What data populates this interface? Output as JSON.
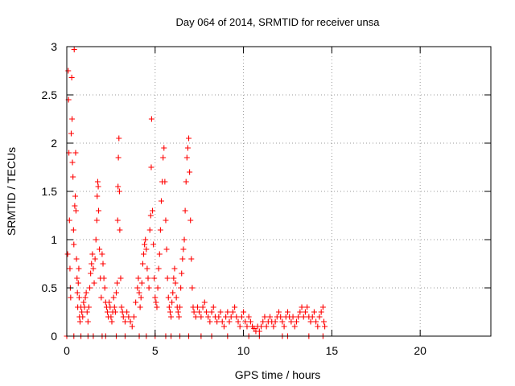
{
  "chart_data": {
    "type": "scatter",
    "title": "Day 064 of 2014, SRMTID for receiver unsa",
    "xlabel": "GPS time / hours",
    "ylabel": "SRMTID / TECUs",
    "xlim": [
      0,
      24
    ],
    "ylim": [
      0,
      3
    ],
    "xticks": [
      0,
      5,
      10,
      15,
      20
    ],
    "xtick_labels": [
      "0",
      "5",
      "10",
      "15",
      "20"
    ],
    "yticks": [
      0,
      0.5,
      1,
      1.5,
      2,
      2.5,
      3
    ],
    "ytick_labels": [
      "0",
      "0.5",
      "1",
      "1.5",
      "2",
      "2.5",
      "3"
    ],
    "grid": true,
    "marker": "+",
    "series_color": "#ff0000",
    "series": [
      {
        "name": "SRMTID",
        "points": [
          [
            0.05,
            0.85
          ],
          [
            0.08,
            2.75
          ],
          [
            0.1,
            2.45
          ],
          [
            0.12,
            1.9
          ],
          [
            0.15,
            1.2
          ],
          [
            0.18,
            0.7
          ],
          [
            0.2,
            0.5
          ],
          [
            0.22,
            0.4
          ],
          [
            0.25,
            2.1
          ],
          [
            0.28,
            2.68
          ],
          [
            0.3,
            2.25
          ],
          [
            0.32,
            1.8
          ],
          [
            0.35,
            1.65
          ],
          [
            0.38,
            1.1
          ],
          [
            0.4,
            0.95
          ],
          [
            0.42,
            2.97
          ],
          [
            0.45,
            1.35
          ],
          [
            0.48,
            1.45
          ],
          [
            0.5,
            1.9
          ],
          [
            0.52,
            1.3
          ],
          [
            0.55,
            0.8
          ],
          [
            0.58,
            0.6
          ],
          [
            0.6,
            0.45
          ],
          [
            0.62,
            0.3
          ],
          [
            0.65,
            0.55
          ],
          [
            0.68,
            0.7
          ],
          [
            0.7,
            0.4
          ],
          [
            0.72,
            0.2
          ],
          [
            0.75,
            0.15
          ],
          [
            0.8,
            0.3
          ],
          [
            0.85,
            0.25
          ],
          [
            0.9,
            0.2
          ],
          [
            0.95,
            0.35
          ],
          [
            1.0,
            0.3
          ],
          [
            1.05,
            0.4
          ],
          [
            1.1,
            0.45
          ],
          [
            1.15,
            0.25
          ],
          [
            1.2,
            0.15
          ],
          [
            1.25,
            0.3
          ],
          [
            1.3,
            0.5
          ],
          [
            1.35,
            0.65
          ],
          [
            1.4,
            0.75
          ],
          [
            1.45,
            0.85
          ],
          [
            1.5,
            0.7
          ],
          [
            1.55,
            0.55
          ],
          [
            1.6,
            0.8
          ],
          [
            1.65,
            1.0
          ],
          [
            1.7,
            1.2
          ],
          [
            1.72,
            1.45
          ],
          [
            1.75,
            1.6
          ],
          [
            1.78,
            1.55
          ],
          [
            1.8,
            1.3
          ],
          [
            1.85,
            0.9
          ],
          [
            1.9,
            0.6
          ],
          [
            1.95,
            0.4
          ],
          [
            2.0,
            0.85
          ],
          [
            2.05,
            0.75
          ],
          [
            2.1,
            0.6
          ],
          [
            2.15,
            0.5
          ],
          [
            2.2,
            0.35
          ],
          [
            2.25,
            0.3
          ],
          [
            2.3,
            0.25
          ],
          [
            2.35,
            0.2
          ],
          [
            2.4,
            0.35
          ],
          [
            2.45,
            0.3
          ],
          [
            2.5,
            0.2
          ],
          [
            2.55,
            0.15
          ],
          [
            2.6,
            0.25
          ],
          [
            2.65,
            0.4
          ],
          [
            2.7,
            0.3
          ],
          [
            2.75,
            0.25
          ],
          [
            2.8,
            0.45
          ],
          [
            2.85,
            0.55
          ],
          [
            2.88,
            1.2
          ],
          [
            2.9,
            1.55
          ],
          [
            2.92,
            1.85
          ],
          [
            2.95,
            2.05
          ],
          [
            2.98,
            1.5
          ],
          [
            3.0,
            1.1
          ],
          [
            3.05,
            0.6
          ],
          [
            3.1,
            0.3
          ],
          [
            3.15,
            0.25
          ],
          [
            3.2,
            0.2
          ],
          [
            3.3,
            0.15
          ],
          [
            3.4,
            0.25
          ],
          [
            3.5,
            0.2
          ],
          [
            3.6,
            0.15
          ],
          [
            3.7,
            0.1
          ],
          [
            3.8,
            0.2
          ],
          [
            3.9,
            0.35
          ],
          [
            4.0,
            0.5
          ],
          [
            4.05,
            0.6
          ],
          [
            4.1,
            0.45
          ],
          [
            4.15,
            0.3
          ],
          [
            4.2,
            0.4
          ],
          [
            4.25,
            0.55
          ],
          [
            4.3,
            0.75
          ],
          [
            4.35,
            0.85
          ],
          [
            4.4,
            0.95
          ],
          [
            4.45,
            1.0
          ],
          [
            4.5,
            0.9
          ],
          [
            4.55,
            0.7
          ],
          [
            4.6,
            0.6
          ],
          [
            4.65,
            0.5
          ],
          [
            4.7,
            1.1
          ],
          [
            4.75,
            1.25
          ],
          [
            4.78,
            1.75
          ],
          [
            4.8,
            2.25
          ],
          [
            4.85,
            1.3
          ],
          [
            4.9,
            0.95
          ],
          [
            4.95,
            0.6
          ],
          [
            5.0,
            0.4
          ],
          [
            5.05,
            0.35
          ],
          [
            5.1,
            0.3
          ],
          [
            5.15,
            0.5
          ],
          [
            5.2,
            0.7
          ],
          [
            5.25,
            0.85
          ],
          [
            5.3,
            1.1
          ],
          [
            5.35,
            1.4
          ],
          [
            5.4,
            1.6
          ],
          [
            5.45,
            1.85
          ],
          [
            5.5,
            1.95
          ],
          [
            5.55,
            1.6
          ],
          [
            5.6,
            1.2
          ],
          [
            5.65,
            0.9
          ],
          [
            5.7,
            0.6
          ],
          [
            5.75,
            0.4
          ],
          [
            5.8,
            0.3
          ],
          [
            5.85,
            0.25
          ],
          [
            5.9,
            0.2
          ],
          [
            5.95,
            0.35
          ],
          [
            6.0,
            0.45
          ],
          [
            6.05,
            0.6
          ],
          [
            6.1,
            0.7
          ],
          [
            6.15,
            0.55
          ],
          [
            6.2,
            0.4
          ],
          [
            6.25,
            0.3
          ],
          [
            6.3,
            0.25
          ],
          [
            6.35,
            0.2
          ],
          [
            6.4,
            0.3
          ],
          [
            6.45,
            0.5
          ],
          [
            6.5,
            0.65
          ],
          [
            6.55,
            0.8
          ],
          [
            6.6,
            0.9
          ],
          [
            6.65,
            1.0
          ],
          [
            6.7,
            1.3
          ],
          [
            6.75,
            1.6
          ],
          [
            6.8,
            1.85
          ],
          [
            6.85,
            1.95
          ],
          [
            6.9,
            2.05
          ],
          [
            6.95,
            1.7
          ],
          [
            7.0,
            1.2
          ],
          [
            7.05,
            0.8
          ],
          [
            7.1,
            0.5
          ],
          [
            7.15,
            0.3
          ],
          [
            7.2,
            0.25
          ],
          [
            7.3,
            0.2
          ],
          [
            7.4,
            0.3
          ],
          [
            7.5,
            0.25
          ],
          [
            7.6,
            0.2
          ],
          [
            7.7,
            0.3
          ],
          [
            7.8,
            0.35
          ],
          [
            7.9,
            0.25
          ],
          [
            8.0,
            0.2
          ],
          [
            8.1,
            0.15
          ],
          [
            8.2,
            0.25
          ],
          [
            8.3,
            0.3
          ],
          [
            8.4,
            0.2
          ],
          [
            8.5,
            0.15
          ],
          [
            8.6,
            0.2
          ],
          [
            8.7,
            0.25
          ],
          [
            8.8,
            0.15
          ],
          [
            8.9,
            0.1
          ],
          [
            9.0,
            0.2
          ],
          [
            9.1,
            0.25
          ],
          [
            9.2,
            0.15
          ],
          [
            9.3,
            0.2
          ],
          [
            9.4,
            0.25
          ],
          [
            9.5,
            0.3
          ],
          [
            9.6,
            0.2
          ],
          [
            9.7,
            0.15
          ],
          [
            9.8,
            0.1
          ],
          [
            9.9,
            0.2
          ],
          [
            10.0,
            0.25
          ],
          [
            10.1,
            0.15
          ],
          [
            10.2,
            0.1
          ],
          [
            10.3,
            0.2
          ],
          [
            10.4,
            0.15
          ],
          [
            10.5,
            0.1
          ],
          [
            10.6,
            0.08
          ],
          [
            10.7,
            0.05
          ],
          [
            10.8,
            0.1
          ],
          [
            10.9,
            0.05
          ],
          [
            11.0,
            0.1
          ],
          [
            11.1,
            0.15
          ],
          [
            11.2,
            0.2
          ],
          [
            11.3,
            0.1
          ],
          [
            11.4,
            0.15
          ],
          [
            11.5,
            0.2
          ],
          [
            11.6,
            0.15
          ],
          [
            11.7,
            0.1
          ],
          [
            11.8,
            0.15
          ],
          [
            11.9,
            0.2
          ],
          [
            12.0,
            0.25
          ],
          [
            12.1,
            0.2
          ],
          [
            12.2,
            0.15
          ],
          [
            12.3,
            0.1
          ],
          [
            12.4,
            0.2
          ],
          [
            12.5,
            0.25
          ],
          [
            12.6,
            0.2
          ],
          [
            12.7,
            0.15
          ],
          [
            12.8,
            0.2
          ],
          [
            12.9,
            0.1
          ],
          [
            13.0,
            0.15
          ],
          [
            13.1,
            0.2
          ],
          [
            13.2,
            0.25
          ],
          [
            13.3,
            0.3
          ],
          [
            13.4,
            0.2
          ],
          [
            13.5,
            0.25
          ],
          [
            13.6,
            0.3
          ],
          [
            13.7,
            0.2
          ],
          [
            13.8,
            0.15
          ],
          [
            13.9,
            0.2
          ],
          [
            14.0,
            0.25
          ],
          [
            14.1,
            0.15
          ],
          [
            14.2,
            0.1
          ],
          [
            14.3,
            0.2
          ],
          [
            14.4,
            0.25
          ],
          [
            14.5,
            0.3
          ],
          [
            14.55,
            0.15
          ],
          [
            14.6,
            0.1
          ],
          [
            0.0,
            0.0
          ],
          [
            0.4,
            0.0
          ],
          [
            0.8,
            0.0
          ],
          [
            1.2,
            0.0
          ],
          [
            1.5,
            0.0
          ],
          [
            2.0,
            0.0
          ],
          [
            2.2,
            0.0
          ],
          [
            2.8,
            0.0
          ],
          [
            3.3,
            0.0
          ],
          [
            4.1,
            0.0
          ],
          [
            4.5,
            0.0
          ],
          [
            5.0,
            0.0
          ],
          [
            5.6,
            0.0
          ],
          [
            5.9,
            0.0
          ],
          [
            6.4,
            0.0
          ],
          [
            6.9,
            0.0
          ],
          [
            7.6,
            0.0
          ],
          [
            8.2,
            0.0
          ],
          [
            9.1,
            0.0
          ],
          [
            10.3,
            0.0
          ],
          [
            10.9,
            0.0
          ],
          [
            12.2,
            0.0
          ],
          [
            12.5,
            0.0
          ],
          [
            13.7,
            0.0
          ],
          [
            14.5,
            0.0
          ]
        ]
      }
    ]
  }
}
